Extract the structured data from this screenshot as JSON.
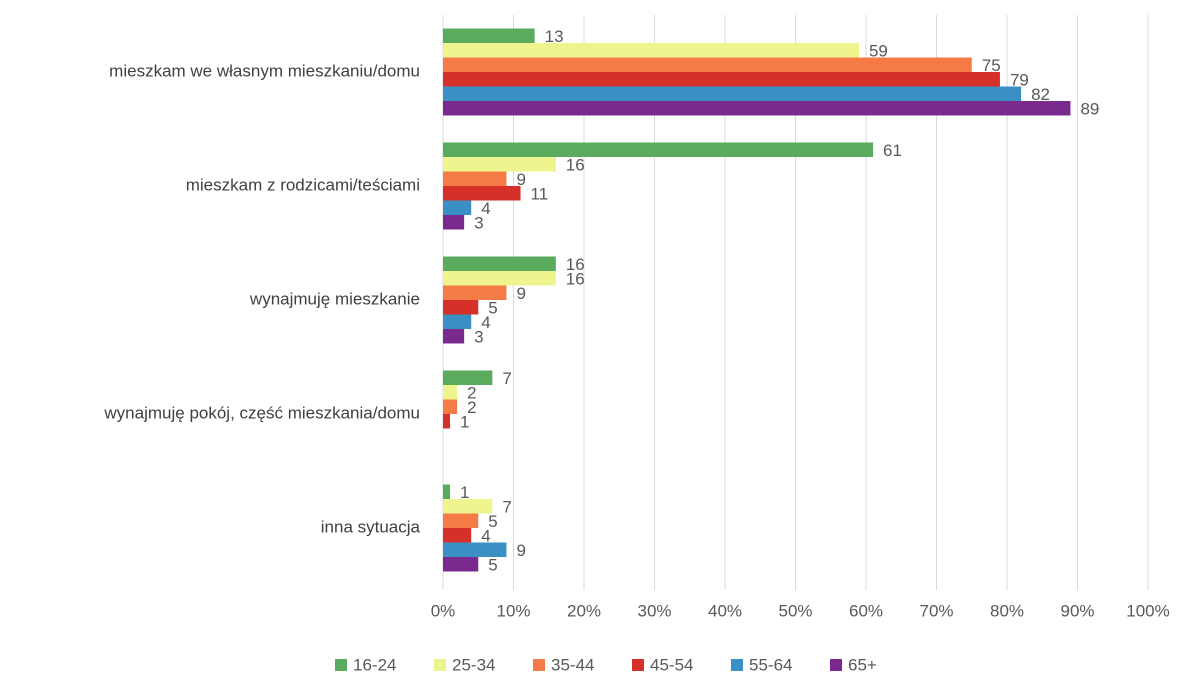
{
  "chart_data": {
    "type": "hbar",
    "categories": [
      "mieszkam we własnym mieszkaniu/domu",
      "mieszkam z rodzicami/teściami",
      "wynajmuję mieszkanie",
      "wynajmuję pokój, część mieszkania/domu",
      "inna sytuacja"
    ],
    "series": [
      {
        "name": "16-24",
        "color": "#5aab5e",
        "values": [
          13,
          61,
          16,
          7,
          1
        ]
      },
      {
        "name": "25-34",
        "color": "#eef58f",
        "values": [
          59,
          16,
          16,
          2,
          7
        ]
      },
      {
        "name": "35-44",
        "color": "#f47a46",
        "values": [
          75,
          9,
          9,
          2,
          5
        ]
      },
      {
        "name": "45-54",
        "color": "#d7302a",
        "values": [
          79,
          11,
          5,
          1,
          4
        ]
      },
      {
        "name": "55-64",
        "color": "#3a8fc4",
        "values": [
          82,
          4,
          4,
          null,
          9
        ]
      },
      {
        "name": "65+",
        "color": "#7a2a8c",
        "values": [
          89,
          3,
          3,
          null,
          5
        ]
      }
    ],
    "xlim": [
      0,
      100
    ],
    "xticks": [
      {
        "value": 0,
        "label": "0%"
      },
      {
        "value": 10,
        "label": "10%"
      },
      {
        "value": 20,
        "label": "20%"
      },
      {
        "value": 30,
        "label": "30%"
      },
      {
        "value": 40,
        "label": "40%"
      },
      {
        "value": 50,
        "label": "50%"
      },
      {
        "value": 60,
        "label": "60%"
      },
      {
        "value": 70,
        "label": "70%"
      },
      {
        "value": 80,
        "label": "80%"
      },
      {
        "value": 90,
        "label": "90%"
      },
      {
        "value": 100,
        "label": "100%"
      }
    ],
    "grid": true,
    "legend": "bottom"
  }
}
